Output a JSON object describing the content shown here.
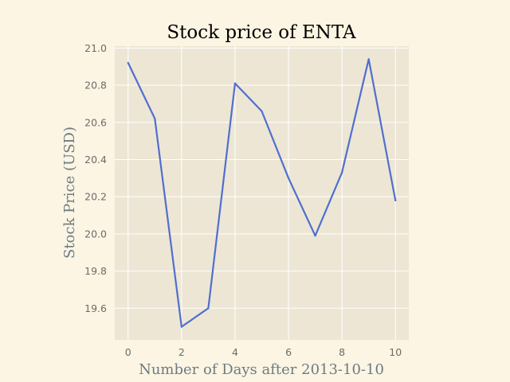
{
  "chart_data": {
    "type": "line",
    "title": "Stock price of ENTA",
    "xlabel": "Number of Days after 2013-10-10",
    "ylabel": "Stock Price (USD)",
    "x": [
      0,
      1,
      2,
      3,
      4,
      5,
      6,
      7,
      8,
      9,
      10
    ],
    "series": [
      {
        "values": [
          20.92,
          20.62,
          19.5,
          19.6,
          20.81,
          20.66,
          20.3,
          19.99,
          20.33,
          20.94,
          20.18
        ]
      }
    ],
    "xlim": [
      -0.5,
      10.5
    ],
    "ylim": [
      19.43,
      21.01
    ],
    "xticks": [
      0,
      2,
      4,
      6,
      8,
      10
    ],
    "yticks": [
      19.6,
      19.8,
      20.0,
      20.2,
      20.4,
      20.6,
      20.8,
      21.0
    ],
    "grid": true,
    "colors": {
      "background": "#fcf5e3",
      "plot_area": "#ede6d5",
      "grid": "#ffffff",
      "line": "#4f6fcf"
    }
  }
}
